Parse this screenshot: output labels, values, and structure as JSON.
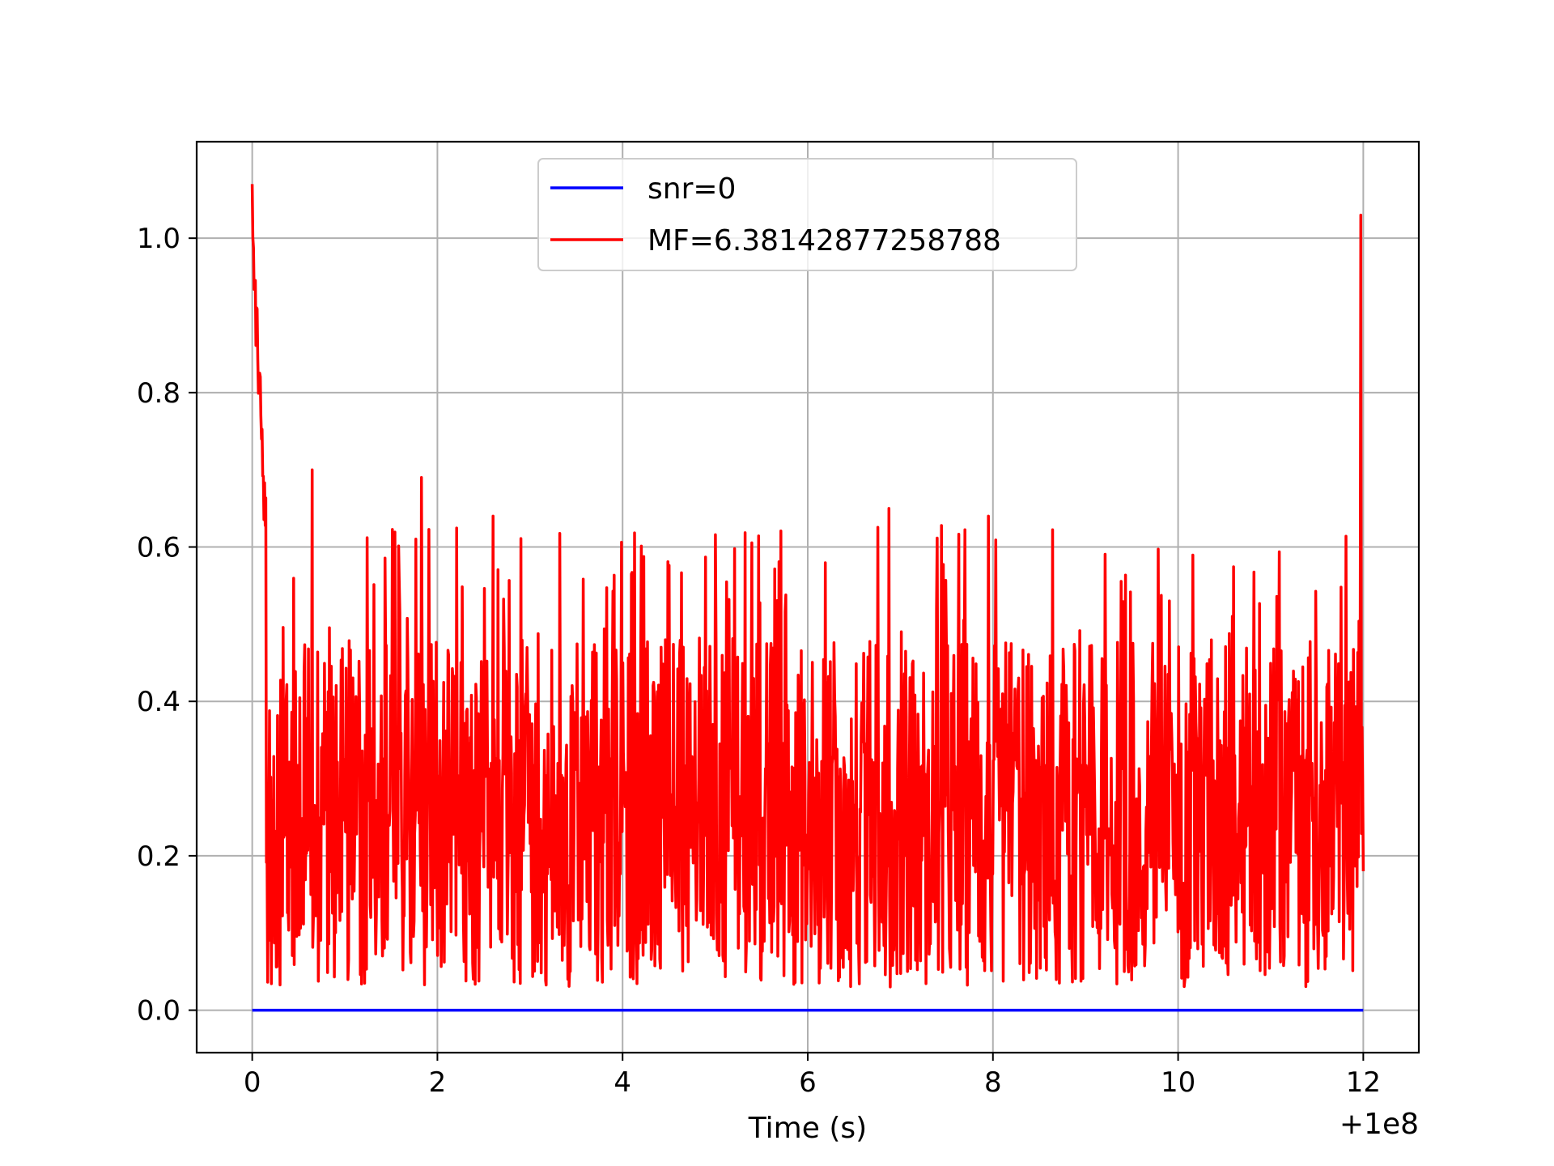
{
  "chart_data": {
    "type": "line",
    "title": "",
    "xlabel": "Time (s)",
    "ylabel": "",
    "x_offset_label": "+1e8",
    "xlim": [
      -0.6,
      12.6
    ],
    "ylim": [
      -0.055,
      1.125
    ],
    "x_ticks": [
      0,
      2,
      4,
      6,
      8,
      10,
      12
    ],
    "x_tick_labels": [
      "0",
      "2",
      "4",
      "6",
      "8",
      "10",
      "12"
    ],
    "y_ticks": [
      0.0,
      0.2,
      0.4,
      0.6,
      0.8,
      1.0
    ],
    "y_tick_labels": [
      "0.0",
      "0.2",
      "0.4",
      "0.6",
      "0.8",
      "1.0"
    ],
    "grid": true,
    "legend_position": "upper center",
    "colors": {
      "snr": "#0000ff",
      "mf": "#ff0000",
      "grid": "#b0b0b0",
      "legend_edge": "#cccccc"
    },
    "series": [
      {
        "name": "snr=0",
        "color": "#0000ff",
        "x": [
          0,
          12
        ],
        "y": [
          0.0,
          0.0
        ]
      },
      {
        "name": "MF=6.38142877258788",
        "color": "#ff0000",
        "x_range": [
          0,
          12
        ],
        "highlights": [
          {
            "x": 0.0,
            "y": 1.07
          },
          {
            "x": 0.05,
            "y": 0.91
          },
          {
            "x": 0.1,
            "y": 0.74
          },
          {
            "x": 0.65,
            "y": 0.7
          },
          {
            "x": 1.83,
            "y": 0.69
          },
          {
            "x": 2.6,
            "y": 0.64
          },
          {
            "x": 6.88,
            "y": 0.65
          },
          {
            "x": 7.95,
            "y": 0.64
          },
          {
            "x": 11.97,
            "y": 1.03
          }
        ],
        "typical_range": [
          0.03,
          0.45
        ]
      }
    ]
  }
}
